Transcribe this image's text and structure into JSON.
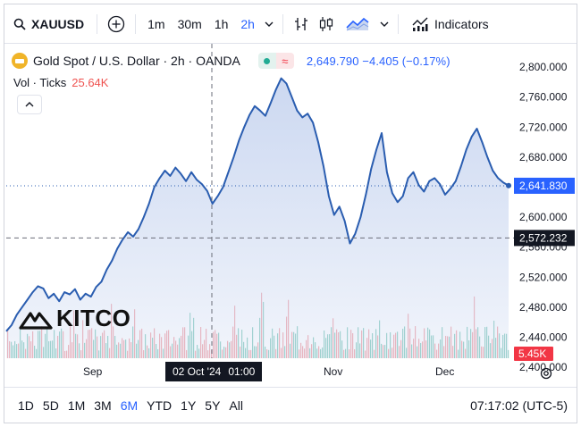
{
  "toolbar": {
    "symbol": "XAUUSD",
    "intervals": [
      "1m",
      "30m",
      "1h",
      "2h"
    ],
    "active_interval": "2h",
    "indicators_label": "Indicators"
  },
  "legend": {
    "title": "Gold Spot / U.S. Dollar · 2h · OANDA",
    "quote": "2,649.790  −4.405 (−0.17%)",
    "vol_label": "Vol · Ticks",
    "vol_value": "25.64K"
  },
  "watermark": {
    "text": "KITCO"
  },
  "time_axis": {
    "labels": [
      "Sep",
      "Nov",
      "Dec"
    ],
    "crosshair_date": "02 Oct '24",
    "crosshair_time": "01:00"
  },
  "bottom": {
    "ranges": [
      "1D",
      "5D",
      "1M",
      "3M",
      "6M",
      "YTD",
      "1Y",
      "5Y",
      "All"
    ],
    "active_range": "6M",
    "clock": "07:17:02 (UTC-5)"
  },
  "colors": {
    "line": "#2a5db0",
    "fill_top": "#c9d6f0",
    "vol_up": "#8fcfc3",
    "vol_down": "#f2a9ae",
    "accent": "#2962ff",
    "down": "#f23645"
  },
  "chart_data": {
    "type": "line",
    "title": "Gold Spot / U.S. Dollar · 2h · OANDA",
    "xlabel": "",
    "ylabel": "",
    "ylim": [
      2412,
      2812
    ],
    "y_ticks": [
      "2,800.000",
      "2,760.000",
      "2,720.000",
      "2,680.000",
      "2,640.000",
      "2,600.000",
      "2,560.000",
      "2,520.000",
      "2,480.000",
      "2,440.000",
      "2,400.000"
    ],
    "x_ticks": [
      "Sep",
      "Nov",
      "Dec"
    ],
    "last_price_label": "2,641.830",
    "crosshair_price_label": "2,572.232",
    "volume_label": "5.45K",
    "series": [
      {
        "name": "XAUUSD",
        "points": [
          [
            0,
            2448
          ],
          [
            2,
            2456
          ],
          [
            4,
            2470
          ],
          [
            6,
            2480
          ],
          [
            8,
            2490
          ],
          [
            10,
            2500
          ],
          [
            12,
            2508
          ],
          [
            14,
            2505
          ],
          [
            16,
            2492
          ],
          [
            18,
            2498
          ],
          [
            20,
            2488
          ],
          [
            22,
            2500
          ],
          [
            24,
            2497
          ],
          [
            26,
            2504
          ],
          [
            28,
            2490
          ],
          [
            30,
            2498
          ],
          [
            32,
            2494
          ],
          [
            34,
            2507
          ],
          [
            36,
            2514
          ],
          [
            38,
            2530
          ],
          [
            40,
            2542
          ],
          [
            42,
            2558
          ],
          [
            44,
            2570
          ],
          [
            46,
            2580
          ],
          [
            48,
            2574
          ],
          [
            50,
            2584
          ],
          [
            52,
            2600
          ],
          [
            54,
            2618
          ],
          [
            56,
            2640
          ],
          [
            58,
            2652
          ],
          [
            60,
            2662
          ],
          [
            62,
            2655
          ],
          [
            64,
            2666
          ],
          [
            66,
            2658
          ],
          [
            68,
            2648
          ],
          [
            70,
            2660
          ],
          [
            72,
            2650
          ],
          [
            74,
            2644
          ],
          [
            76,
            2635
          ],
          [
            78,
            2618
          ],
          [
            80,
            2628
          ],
          [
            82,
            2640
          ],
          [
            84,
            2660
          ],
          [
            86,
            2680
          ],
          [
            88,
            2702
          ],
          [
            90,
            2720
          ],
          [
            92,
            2736
          ],
          [
            94,
            2748
          ],
          [
            96,
            2742
          ],
          [
            98,
            2735
          ],
          [
            100,
            2752
          ],
          [
            102,
            2770
          ],
          [
            104,
            2785
          ],
          [
            106,
            2778
          ],
          [
            108,
            2760
          ],
          [
            110,
            2742
          ],
          [
            112,
            2733
          ],
          [
            114,
            2738
          ],
          [
            116,
            2726
          ],
          [
            118,
            2700
          ],
          [
            120,
            2668
          ],
          [
            122,
            2628
          ],
          [
            124,
            2603
          ],
          [
            126,
            2614
          ],
          [
            128,
            2595
          ],
          [
            130,
            2565
          ],
          [
            132,
            2578
          ],
          [
            134,
            2600
          ],
          [
            136,
            2630
          ],
          [
            138,
            2664
          ],
          [
            140,
            2690
          ],
          [
            142,
            2712
          ],
          [
            144,
            2660
          ],
          [
            146,
            2632
          ],
          [
            148,
            2620
          ],
          [
            150,
            2628
          ],
          [
            152,
            2652
          ],
          [
            154,
            2660
          ],
          [
            156,
            2643
          ],
          [
            158,
            2634
          ],
          [
            160,
            2648
          ],
          [
            162,
            2652
          ],
          [
            164,
            2644
          ],
          [
            166,
            2630
          ],
          [
            168,
            2638
          ],
          [
            170,
            2648
          ],
          [
            172,
            2668
          ],
          [
            174,
            2690
          ],
          [
            176,
            2707
          ],
          [
            178,
            2718
          ],
          [
            180,
            2700
          ],
          [
            182,
            2680
          ],
          [
            184,
            2662
          ],
          [
            186,
            2652
          ],
          [
            188,
            2646
          ],
          [
            190,
            2642
          ]
        ]
      }
    ]
  }
}
